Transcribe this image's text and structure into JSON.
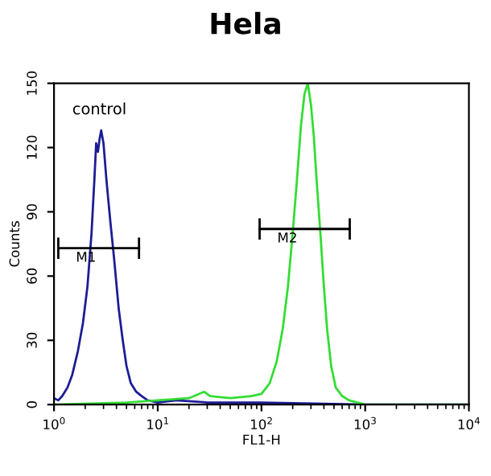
{
  "chart_data": {
    "type": "line",
    "title": "Hela",
    "xlabel": "FL1-H",
    "ylabel": "Counts",
    "log": "x",
    "xlim": [
      1,
      10000
    ],
    "xticks": [
      {
        "value": 1,
        "label": "10$^{0}$"
      },
      {
        "value": 10,
        "label": "10$^{1}$"
      },
      {
        "value": 100,
        "label": "10$^{2}$"
      },
      {
        "value": 1000,
        "label": "10$^{3}$"
      },
      {
        "value": 10000,
        "label": "10$^{4}$"
      }
    ],
    "ylim": [
      0,
      150
    ],
    "yticks": [
      0,
      30,
      60,
      90,
      120,
      150
    ],
    "grid": false,
    "series": [
      {
        "name": "control",
        "color": "#1c1c96",
        "x": [
          1.0,
          1.1,
          1.2,
          1.35,
          1.5,
          1.7,
          1.9,
          2.1,
          2.3,
          2.45,
          2.55,
          2.65,
          2.75,
          2.85,
          3.0,
          3.2,
          3.5,
          3.8,
          4.2,
          4.6,
          5.0,
          5.5,
          6.2,
          7,
          8,
          10,
          15,
          30,
          100,
          1000,
          10000
        ],
        "values": [
          3,
          2,
          4,
          8,
          14,
          25,
          38,
          55,
          80,
          105,
          122,
          118,
          124,
          128,
          122,
          105,
          85,
          68,
          45,
          30,
          18,
          10,
          6,
          4,
          2,
          1,
          2,
          1,
          1,
          0,
          0
        ]
      },
      {
        "color": "#33dd33",
        "x": [
          1,
          5,
          10,
          20,
          28,
          32,
          50,
          80,
          100,
          120,
          140,
          160,
          180,
          200,
          220,
          240,
          260,
          280,
          300,
          320,
          340,
          370,
          400,
          430,
          470,
          520,
          600,
          700,
          1000,
          10000
        ],
        "values": [
          0,
          1,
          2,
          3,
          6,
          4,
          3,
          4,
          5,
          10,
          20,
          35,
          55,
          80,
          105,
          130,
          145,
          150,
          140,
          125,
          105,
          80,
          55,
          35,
          18,
          8,
          4,
          2,
          0,
          0
        ]
      },
      {
        "name": "M1",
        "color": "#000000",
        "x": [
          1.1,
          6.6
        ],
        "values": [
          73,
          73
        ],
        "errors": [
          5,
          5
        ]
      },
      {
        "name": "M2",
        "color": "#000000",
        "x": [
          96,
          710
        ],
        "values": [
          82,
          82
        ],
        "errors": [
          5,
          5
        ]
      }
    ]
  }
}
